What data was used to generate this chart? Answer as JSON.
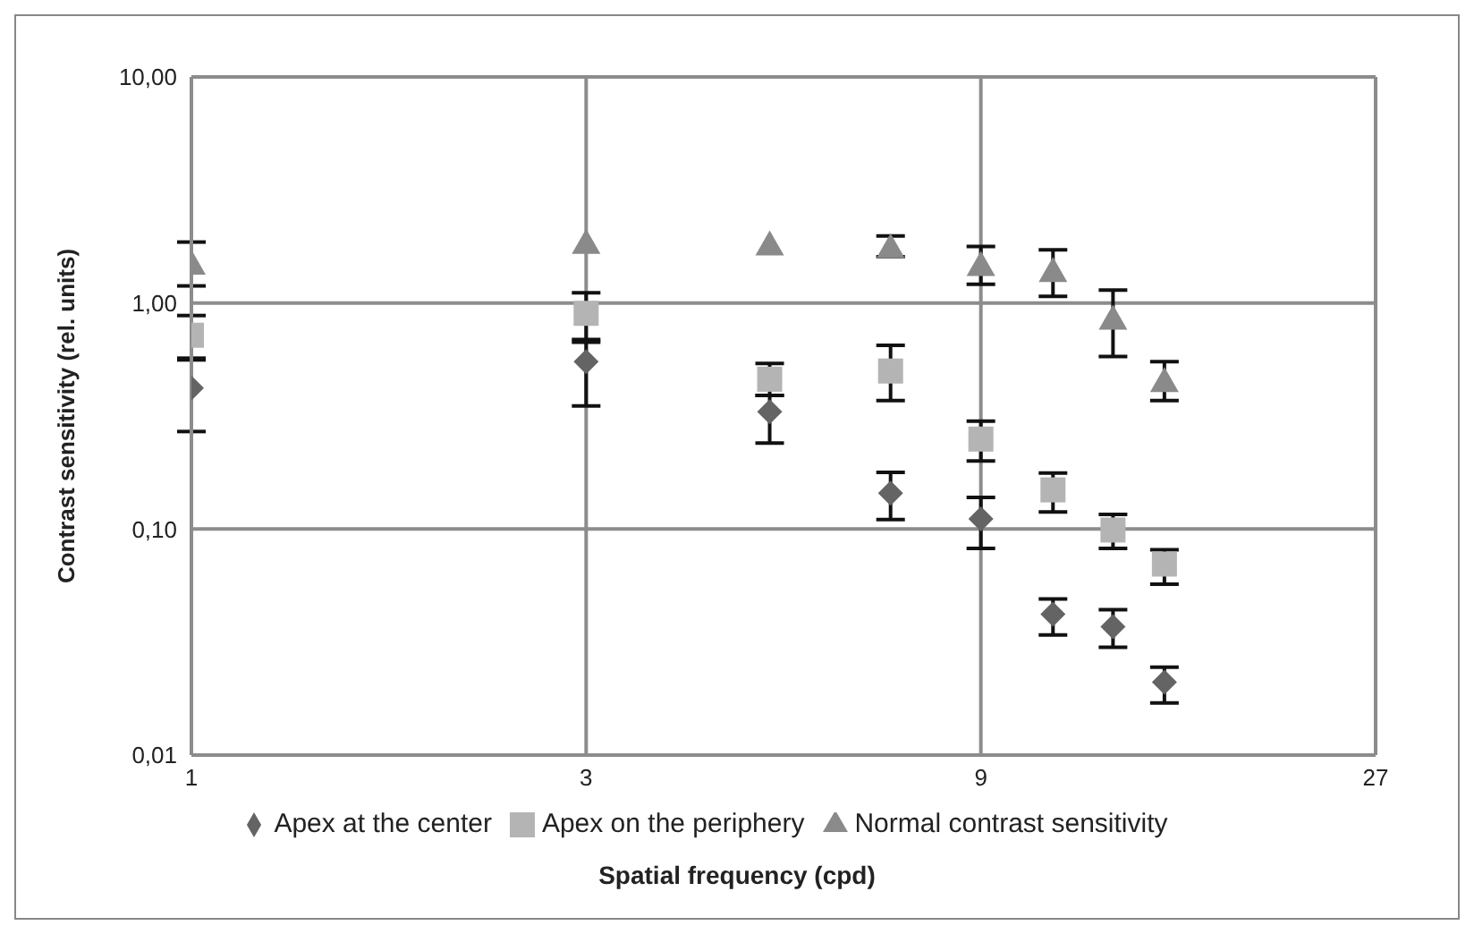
{
  "chart_data": {
    "type": "scatter",
    "xlabel": "Spatial frequency (cpd)",
    "ylabel": "Contrast sensitivity (rel. units)",
    "log": "xy",
    "xlim": [
      1,
      27
    ],
    "xticks": [
      1,
      3,
      9,
      27
    ],
    "ylim": [
      0.01,
      10
    ],
    "yticks": [
      {
        "value": 0.01,
        "label": "0,01"
      },
      {
        "value": 0.1,
        "label": "0,10"
      },
      {
        "value": 1,
        "label": "1,00"
      },
      {
        "value": 10,
        "label": "10,00"
      }
    ],
    "grid": true,
    "legend": "bottom",
    "x": [
      1,
      3,
      5,
      7,
      9,
      11,
      13,
      15
    ],
    "series": [
      {
        "name": "Apex at the center",
        "color": "#646464",
        "marker": "diamond",
        "values": [
          0.42,
          0.55,
          0.33,
          0.144,
          0.111,
          0.042,
          0.037,
          0.021
        ],
        "errors": [
          [
            0.27,
            0.56
          ],
          [
            0.35,
            0.69
          ],
          [
            0.24,
            0.39
          ],
          [
            0.11,
            0.178
          ],
          [
            0.082,
            0.138
          ],
          [
            0.034,
            0.049
          ],
          [
            0.03,
            0.044
          ],
          [
            0.017,
            0.0245
          ]
        ]
      },
      {
        "name": "Apex on the periphery",
        "color": "#b4b4b4",
        "marker": "square",
        "values": [
          0.72,
          0.9,
          0.46,
          0.5,
          0.25,
          0.149,
          0.099,
          0.07
        ],
        "errors": [
          [
            0.57,
            0.88
          ],
          [
            0.67,
            1.11
          ],
          [
            0.39,
            0.54
          ],
          [
            0.37,
            0.65
          ],
          [
            0.2,
            0.3
          ],
          [
            0.119,
            0.177
          ],
          [
            0.082,
            0.116
          ],
          [
            0.057,
            0.081
          ]
        ]
      },
      {
        "name": "Normal contrast sensitivity",
        "color": "#8a8a8a",
        "marker": "triangle",
        "values": [
          1.49,
          1.84,
          1.81,
          1.76,
          1.47,
          1.38,
          0.85,
          0.45
        ],
        "errors": [
          [
            1.19,
            1.86
          ],
          null,
          null,
          [
            1.6,
            1.98
          ],
          [
            1.21,
            1.78
          ],
          [
            1.07,
            1.72
          ],
          [
            0.58,
            1.14
          ],
          [
            0.37,
            0.55
          ]
        ]
      }
    ]
  }
}
